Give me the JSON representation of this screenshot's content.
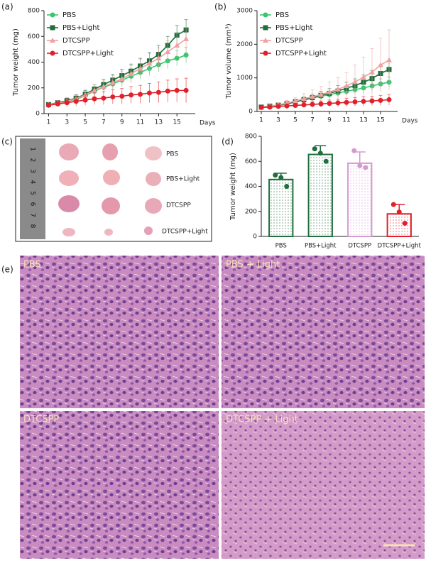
{
  "panel_labels": [
    "(a)",
    "(b)",
    "(c)",
    "(d)",
    "(e)"
  ],
  "chart_data": [
    {
      "type": "line",
      "x_label": "Days",
      "y_label": "Tumor weight (mg)",
      "x": [
        1,
        2,
        3,
        4,
        5,
        6,
        7,
        8,
        9,
        10,
        11,
        12,
        13,
        14,
        15,
        16
      ],
      "xlim": [
        0.5,
        17
      ],
      "xticks": [
        1,
        3,
        5,
        7,
        9,
        11,
        13,
        15
      ],
      "ylim": [
        0,
        800
      ],
      "yticks": [
        0,
        200,
        400,
        600,
        800
      ],
      "series": [
        {
          "name": "PBS",
          "color": "#3cc46e",
          "marker": "circle",
          "values": [
            70,
            80,
            95,
            110,
            140,
            175,
            205,
            230,
            260,
            290,
            320,
            350,
            380,
            410,
            430,
            455
          ],
          "errors": [
            10,
            15,
            20,
            25,
            30,
            35,
            40,
            40,
            45,
            50,
            50,
            55,
            55,
            60,
            60,
            60
          ]
        },
        {
          "name": "PBS+Light",
          "color": "#1f6e3c",
          "marker": "square",
          "values": [
            70,
            85,
            100,
            120,
            150,
            190,
            225,
            260,
            295,
            330,
            370,
            410,
            460,
            530,
            610,
            650
          ],
          "errors": [
            10,
            15,
            20,
            25,
            30,
            35,
            40,
            45,
            50,
            55,
            60,
            65,
            70,
            70,
            75,
            80
          ]
        },
        {
          "name": "DTCSPP",
          "color": "#f0a0a0",
          "marker": "triangle",
          "values": [
            70,
            80,
            95,
            115,
            145,
            180,
            210,
            240,
            270,
            310,
            350,
            390,
            430,
            480,
            530,
            580
          ],
          "errors": [
            10,
            20,
            30,
            35,
            40,
            45,
            50,
            55,
            60,
            65,
            70,
            75,
            80,
            85,
            90,
            90
          ]
        },
        {
          "name": "DTCSPP+Light",
          "color": "#e0202a",
          "marker": "circle",
          "values": [
            65,
            75,
            85,
            95,
            105,
            115,
            120,
            130,
            135,
            145,
            150,
            160,
            165,
            175,
            180,
            180
          ],
          "errors": [
            10,
            20,
            30,
            35,
            40,
            45,
            50,
            55,
            60,
            65,
            70,
            75,
            80,
            85,
            90,
            95
          ]
        }
      ]
    },
    {
      "type": "line",
      "x_label": "Days",
      "y_label": "Tumor volume (mm³)",
      "x": [
        1,
        2,
        3,
        4,
        5,
        6,
        7,
        8,
        9,
        10,
        11,
        12,
        13,
        14,
        15,
        16
      ],
      "xlim": [
        0.5,
        17
      ],
      "xticks": [
        1,
        3,
        5,
        7,
        9,
        11,
        13,
        15
      ],
      "ylim": [
        0,
        3000
      ],
      "yticks": [
        0,
        1000,
        2000,
        3000
      ],
      "series": [
        {
          "name": "PBS",
          "color": "#3cc46e",
          "marker": "circle",
          "values": [
            130,
            150,
            180,
            220,
            280,
            340,
            400,
            450,
            500,
            550,
            600,
            650,
            700,
            760,
            820,
            870
          ],
          "errors": [
            20,
            30,
            40,
            50,
            60,
            70,
            80,
            90,
            100,
            110,
            120,
            130,
            140,
            150,
            150,
            150
          ]
        },
        {
          "name": "PBS+Light",
          "color": "#1f6e3c",
          "marker": "square",
          "values": [
            130,
            160,
            190,
            230,
            290,
            350,
            410,
            480,
            540,
            610,
            690,
            770,
            870,
            980,
            1130,
            1250
          ],
          "errors": [
            20,
            30,
            40,
            50,
            60,
            80,
            100,
            120,
            140,
            160,
            180,
            200,
            220,
            240,
            250,
            250
          ]
        },
        {
          "name": "DTCSPP",
          "color": "#f0a0a0",
          "marker": "triangle",
          "values": [
            130,
            160,
            200,
            250,
            310,
            380,
            440,
            500,
            580,
            660,
            760,
            880,
            1020,
            1170,
            1380,
            1530
          ],
          "errors": [
            20,
            40,
            60,
            80,
            100,
            150,
            200,
            250,
            300,
            350,
            400,
            500,
            600,
            700,
            800,
            900
          ]
        },
        {
          "name": "DTCSPP+Light",
          "color": "#e0202a",
          "marker": "circle",
          "values": [
            120,
            130,
            150,
            165,
            180,
            195,
            210,
            225,
            240,
            255,
            270,
            285,
            300,
            315,
            330,
            350
          ],
          "errors": [
            20,
            30,
            40,
            50,
            60,
            70,
            80,
            90,
            100,
            110,
            120,
            130,
            140,
            140,
            150,
            160
          ]
        }
      ]
    },
    {
      "type": "bar",
      "y_label": "Tumor weight (mg)",
      "categories": [
        "PBS",
        "PBS+Light",
        "DTCSPP",
        "DTCSPP+Light"
      ],
      "values": [
        455,
        655,
        585,
        180
      ],
      "errors": [
        50,
        70,
        90,
        75
      ],
      "points": [
        [
          490,
          400,
          470
        ],
        [
          700,
          600,
          665
        ],
        [
          685,
          550,
          565
        ],
        [
          255,
          105,
          195
        ]
      ],
      "colors": [
        "#1f6e3c",
        "#1f6e3c",
        "#d49ad0",
        "#e0202a"
      ],
      "ylim": [
        0,
        800
      ],
      "yticks": [
        0,
        200,
        400,
        600,
        800
      ]
    }
  ],
  "photo": {
    "ruler": [
      1,
      2,
      3,
      4,
      5,
      6,
      7,
      8
    ],
    "labels": [
      "PBS",
      "PBS+Light",
      "DTCSPP",
      "DTCSPP+Light"
    ]
  },
  "micrographs": {
    "labels": [
      "PBS",
      "PBS + Light",
      "DTCSPP",
      "DTCSPP + Light"
    ]
  }
}
